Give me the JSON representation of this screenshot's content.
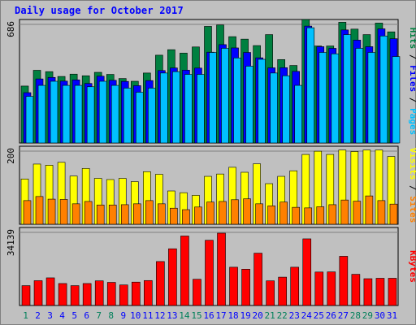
{
  "chart_data": {
    "title": "Daily usage for October 2017",
    "type": "bar",
    "categories": [
      "1",
      "2",
      "3",
      "4",
      "5",
      "6",
      "7",
      "8",
      "9",
      "10",
      "11",
      "12",
      "13",
      "14",
      "15",
      "16",
      "17",
      "18",
      "19",
      "20",
      "21",
      "22",
      "23",
      "24",
      "25",
      "26",
      "27",
      "28",
      "29",
      "30",
      "31"
    ],
    "weekend_days": [
      "1",
      "7",
      "8",
      "14",
      "15",
      "21",
      "22",
      "28",
      "29"
    ],
    "panels": [
      {
        "name": "hits_files_pages",
        "y_tick_label": "686",
        "ylim": [
          0,
          900
        ],
        "series": [
          {
            "name": "Hits",
            "color": "#008040",
            "values": [
              415,
              530,
              520,
              485,
              502,
              490,
              515,
              500,
              470,
              450,
              510,
              640,
              680,
              655,
              700,
              850,
              860,
              775,
              757,
              710,
              790,
              608,
              565,
              900,
              707,
              707,
              880,
              830,
              790,
              874,
              810
            ]
          },
          {
            "name": "Files",
            "color": "#0000ff",
            "values": [
              367,
              467,
              478,
              451,
              460,
              434,
              487,
              457,
              449,
              418,
              455,
              528,
              547,
              531,
              546,
              662,
              717,
              693,
              660,
              621,
              548,
              549,
              522,
              852,
              702,
              690,
              824,
              750,
              702,
              832,
              760
            ]
          },
          {
            "name": "Pages",
            "color": "#00c0ff",
            "values": [
              340,
              420,
              450,
              420,
              420,
              410,
              450,
              420,
              400,
              370,
              400,
              510,
              520,
              500,
              500,
              660,
              690,
              620,
              560,
              610,
              510,
              490,
              420,
              840,
              660,
              650,
              790,
              690,
              660,
              780,
              630
            ]
          }
        ],
        "axis_label_parts": [
          "Pages",
          "Files",
          "Hits"
        ]
      },
      {
        "name": "sites_visits",
        "y_tick_label": "200",
        "ylim": [
          0,
          267
        ],
        "series": [
          {
            "name": "Visits",
            "color": "#ffff00",
            "values": [
              155,
              206,
              202,
              212,
              165,
              191,
              157,
              153,
              157,
              146,
              180,
              171,
              114,
              108,
              99,
              164,
              172,
              195,
              178,
              207,
              139,
              164,
              183,
              239,
              250,
              239,
              254,
              249,
              254,
              254,
              232
            ]
          },
          {
            "name": "Sites",
            "color": "#ff8000",
            "values": [
              81,
              95,
              86,
              85,
              70,
              78,
              66,
              66,
              67,
              70,
              81,
              70,
              55,
              50,
              59,
              76,
              78,
              84,
              87,
              70,
              63,
              76,
              58,
              56,
              60,
              67,
              83,
              79,
              97,
              81,
              69
            ]
          }
        ],
        "axis_label_parts": [
          "Sites",
          "Visits"
        ]
      },
      {
        "name": "kbytes",
        "y_tick_label": "34139",
        "ylim": [
          0,
          55000
        ],
        "series": [
          {
            "name": "KBytes",
            "color": "#ff0000",
            "values": [
              14000,
              17500,
              19500,
              15500,
              14000,
              15500,
              17400,
              16300,
              14500,
              16500,
              17600,
              31000,
              40000,
              49000,
              18500,
              46000,
              51000,
              27000,
              25600,
              36900,
              17400,
              20000,
              27000,
              47000,
              23600,
              23700,
              34700,
              22000,
              18900,
              19200,
              19200
            ]
          }
        ],
        "axis_label_parts": [
          "KBytes"
        ]
      }
    ],
    "colors": {
      "background": "#c0c0c0",
      "title": "#0000ff",
      "weekday_label": "#0000ff",
      "weekend_label": "#00805a",
      "divider": "#0000ff"
    }
  }
}
